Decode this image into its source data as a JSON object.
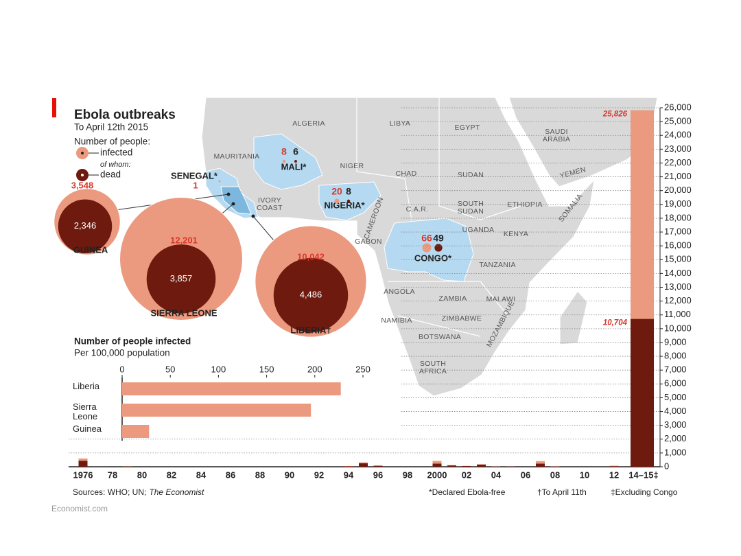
{
  "title": "Ebola outbreaks",
  "subtitle": "To April 12th 2015",
  "legend": {
    "heading": "Number of people:",
    "note": "of whom:"
  },
  "outbreaks": [
    {
      "country": "GUINEA",
      "infected": 3548,
      "infected_label": "3,548",
      "dead": 2346,
      "dead_label": "2,346"
    },
    {
      "country": "SIERRA LEONE",
      "infected": 12201,
      "infected_label": "12,201",
      "dead": 3857,
      "dead_label": "3,857"
    },
    {
      "country": "LIBERIA†",
      "infected": 10042,
      "infected_label": "10,042",
      "dead": 4486,
      "dead_label": "4,486"
    }
  ],
  "map_outbreaks": [
    {
      "country": "MALI*",
      "infected": 8,
      "dead": 6
    },
    {
      "country": "NIGERIA*",
      "infected": 20,
      "dead": 8
    },
    {
      "country": "CONGO*",
      "infected": 66,
      "dead": 49
    },
    {
      "country": "SENEGAL*",
      "infected": 1
    }
  ],
  "map_labels": [
    "ALGERIA",
    "LIBYA",
    "EGYPT",
    "SAUDI ARABIA",
    "MAURITANIA",
    "NIGER",
    "CHAD",
    "SUDAN",
    "YEMEN",
    "IVORY COAST",
    "C.A.R.",
    "SOUTH SUDAN",
    "ETHIOPIA",
    "SOMALIA",
    "CAMEROON",
    "GABON",
    "UGANDA",
    "KENYA",
    "TANZANIA",
    "ANGOLA",
    "ZAMBIA",
    "MALAWI",
    "NAMIBIA",
    "ZIMBABWE",
    "MOZAMBIQUE",
    "BOTSWANA",
    "SOUTH AFRICA"
  ],
  "chart_data": [
    {
      "type": "hbar",
      "title": "Number of people infected",
      "subtitle": "Per 100,000 population",
      "categories": [
        "Liberia",
        "Sierra Leone",
        "Guinea"
      ],
      "values": [
        227,
        196,
        28
      ],
      "color": "#eb9a80",
      "xlim": [
        0,
        250
      ],
      "xticks": [
        0,
        50,
        100,
        150,
        200,
        250
      ]
    },
    {
      "type": "bar",
      "categories": [
        "1976",
        null,
        "78",
        null,
        "80",
        null,
        "82",
        null,
        "84",
        null,
        "86",
        null,
        "88",
        null,
        "90",
        null,
        "92",
        null,
        "94",
        null,
        "96",
        null,
        "98",
        null,
        "2000",
        null,
        "02",
        null,
        "04",
        null,
        "06",
        null,
        "08",
        null,
        "10",
        null,
        "12",
        null,
        "14–15‡"
      ],
      "series": [
        {
          "name": "infected",
          "color": "#eb9a80",
          "values": [
            602,
            1,
            0,
            34,
            0,
            0,
            0,
            0,
            0,
            0,
            0,
            0,
            0,
            0,
            0,
            0,
            0,
            0,
            52,
            315,
            91,
            0,
            0,
            0,
            425,
            122,
            60,
            178,
            17,
            12,
            0,
            413,
            32,
            0,
            0,
            1,
            77,
            0,
            25826
          ],
          "value_labels": [
            null,
            null,
            null,
            null,
            null,
            null,
            null,
            null,
            null,
            null,
            null,
            null,
            null,
            null,
            null,
            null,
            null,
            null,
            null,
            null,
            null,
            null,
            null,
            null,
            null,
            null,
            null,
            null,
            null,
            null,
            null,
            null,
            null,
            null,
            null,
            null,
            null,
            null,
            "25,826"
          ]
        },
        {
          "name": "dead",
          "color": "#6e1a0f",
          "values": [
            431,
            1,
            0,
            22,
            0,
            0,
            0,
            0,
            0,
            0,
            0,
            0,
            0,
            0,
            0,
            0,
            0,
            0,
            31,
            254,
            66,
            0,
            0,
            0,
            224,
            96,
            50,
            157,
            7,
            10,
            0,
            224,
            15,
            0,
            0,
            1,
            36,
            0,
            10704
          ],
          "value_labels": [
            null,
            null,
            null,
            null,
            null,
            null,
            null,
            null,
            null,
            null,
            null,
            null,
            null,
            null,
            null,
            null,
            null,
            null,
            null,
            null,
            null,
            null,
            null,
            null,
            null,
            null,
            null,
            null,
            null,
            null,
            null,
            null,
            null,
            null,
            null,
            null,
            null,
            null,
            "10,704"
          ]
        }
      ],
      "ylim": [
        0,
        26000
      ],
      "yticks": [
        0,
        {
          "value": 1000,
          "label": "1,000"
        },
        {
          "value": 2000,
          "label": "2,000"
        },
        {
          "value": 3000,
          "label": "3,000"
        },
        {
          "value": 4000,
          "label": "4,000"
        },
        {
          "value": 5000,
          "label": "5,000"
        },
        {
          "value": 6000,
          "label": "6,000"
        },
        {
          "value": 7000,
          "label": "7,000"
        },
        {
          "value": 8000,
          "label": "8,000"
        },
        {
          "value": 9000,
          "label": "9,000"
        },
        {
          "value": 10000,
          "label": "10,000"
        },
        {
          "value": 11000,
          "label": "11,000"
        },
        {
          "value": 12000,
          "label": "12,000"
        },
        {
          "value": 13000,
          "label": "13,000"
        },
        {
          "value": 14000,
          "label": "14,000"
        },
        {
          "value": 15000,
          "label": "15,000"
        },
        {
          "value": 16000,
          "label": "16,000"
        },
        {
          "value": 17000,
          "label": "17,000"
        },
        {
          "value": 18000,
          "label": "18,000"
        },
        {
          "value": 19000,
          "label": "19,000"
        },
        {
          "value": 20000,
          "label": "20,000"
        },
        {
          "value": 21000,
          "label": "21,000"
        },
        {
          "value": 22000,
          "label": "22,000"
        },
        {
          "value": 23000,
          "label": "23,000"
        },
        {
          "value": 24000,
          "label": "24,000"
        },
        {
          "value": 25000,
          "label": "25,000"
        },
        {
          "value": 26000,
          "label": "26,000"
        }
      ],
      "grid": true
    }
  ],
  "sources": {
    "text": "Sources: WHO; UN;",
    "italic": "The Economist"
  },
  "footnotes": [
    "*Declared Ebola-free",
    "†To April 11th",
    "‡Excluding Congo"
  ],
  "credit": "Economist.com"
}
